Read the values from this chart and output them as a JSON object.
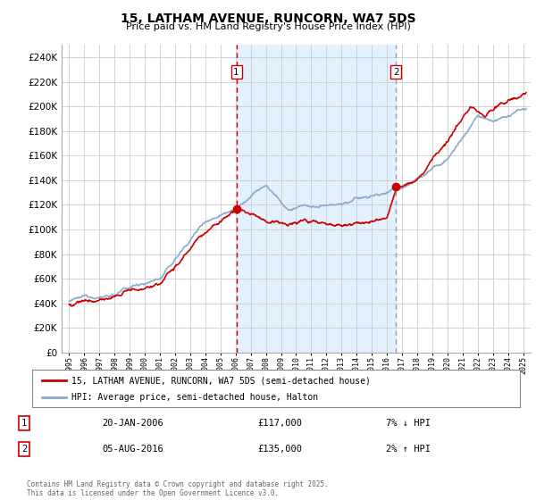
{
  "title": "15, LATHAM AVENUE, RUNCORN, WA7 5DS",
  "subtitle": "Price paid vs. HM Land Registry's House Price Index (HPI)",
  "legend_line1": "15, LATHAM AVENUE, RUNCORN, WA7 5DS (semi-detached house)",
  "legend_line2": "HPI: Average price, semi-detached house, Halton",
  "footer": "Contains HM Land Registry data © Crown copyright and database right 2025.\nThis data is licensed under the Open Government Licence v3.0.",
  "vline1_x": 2006.05,
  "vline2_x": 2016.6,
  "sale1_x": 2006.05,
  "sale1_y": 117000,
  "sale2_x": 2016.6,
  "sale2_y": 135000,
  "price_color": "#cc0000",
  "hpi_color": "#88aacc",
  "vline1_color": "#cc0000",
  "vline2_color": "#9999bb",
  "sale_dot_color": "#cc0000",
  "span_color": "#ddeeff",
  "background_color": "#ffffff",
  "grid_color": "#cccccc",
  "ylim": [
    0,
    250000
  ],
  "xlim": [
    1994.5,
    2025.5
  ],
  "ytick_step": 20000,
  "row1_date": "20-JAN-2006",
  "row1_price": "£117,000",
  "row1_hpi": "7% ↓ HPI",
  "row2_date": "05-AUG-2016",
  "row2_price": "£135,000",
  "row2_hpi": "2% ↑ HPI"
}
